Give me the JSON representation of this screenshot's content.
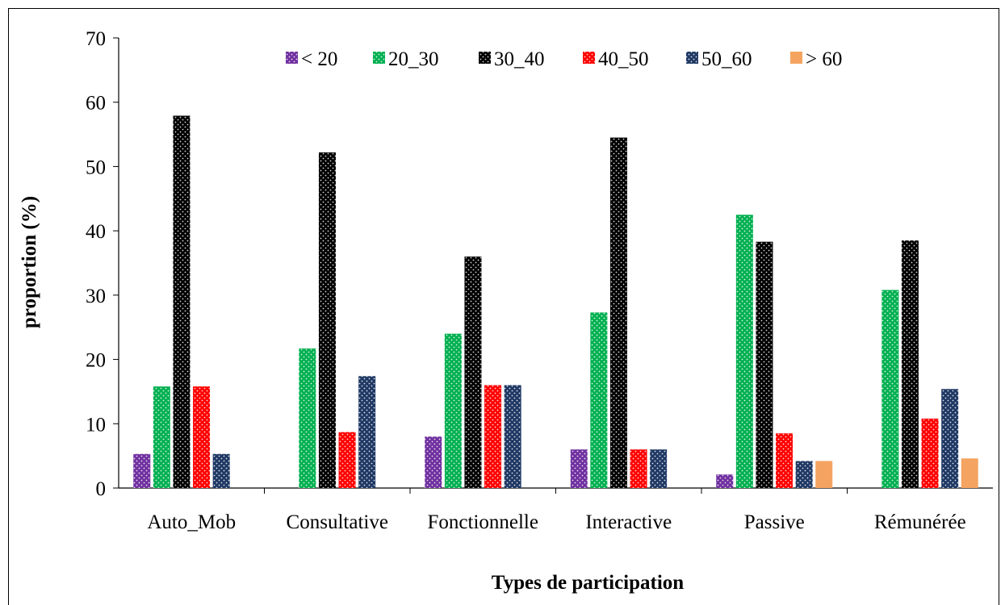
{
  "chart_data": {
    "type": "bar",
    "xlabel": "Types de participation",
    "ylabel": "proportion (%)",
    "ylim": [
      0,
      70
    ],
    "yticks": [
      "0",
      "10",
      "20",
      "30",
      "40",
      "50",
      "60",
      "70"
    ],
    "legend_position": "top",
    "grid": false,
    "categories": [
      "Auto_Mob",
      "Consultative",
      "Fonctionnelle",
      "Interactive",
      "Passive",
      "Rémunérée"
    ],
    "series": [
      {
        "name": "< 20",
        "color": "#7030A0",
        "pattern": "dots",
        "values": [
          5.3,
          0,
          8.0,
          6.0,
          2.1,
          0
        ]
      },
      {
        "name": "20_30",
        "color": "#00B050",
        "pattern": "dots",
        "values": [
          15.8,
          21.7,
          24.0,
          27.3,
          42.5,
          30.8
        ]
      },
      {
        "name": "30_40",
        "color": "#000000",
        "pattern": "dots",
        "values": [
          57.9,
          52.2,
          36.0,
          54.5,
          38.3,
          38.5
        ]
      },
      {
        "name": "40_50",
        "color": "#FF0000",
        "pattern": "dots",
        "values": [
          15.8,
          8.7,
          16.0,
          6.0,
          8.5,
          10.8
        ]
      },
      {
        "name": "50_60",
        "color": "#1F3864",
        "pattern": "dots",
        "values": [
          5.3,
          17.4,
          16.0,
          6.0,
          4.2,
          15.4
        ]
      },
      {
        "name": "> 60",
        "color": "#F4A460",
        "pattern": "solid",
        "values": [
          0,
          0,
          0,
          0,
          4.2,
          4.6
        ]
      }
    ]
  }
}
